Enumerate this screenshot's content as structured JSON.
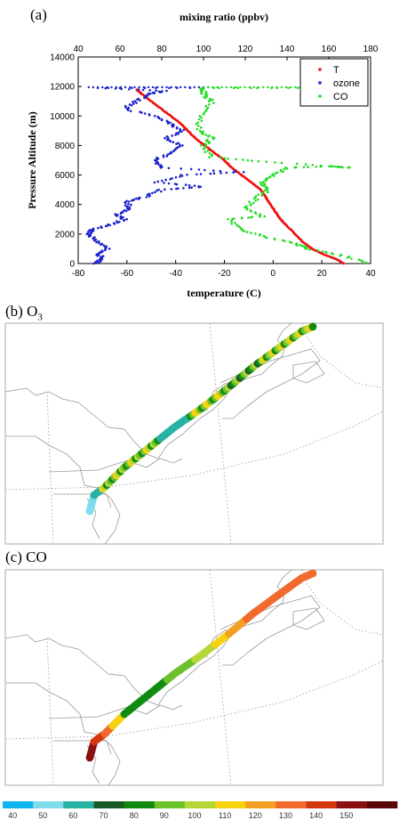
{
  "panels": {
    "a_label": "(a)",
    "b_label": "(b) O",
    "b_sub": "3",
    "c_label": "(c) CO"
  },
  "chart_data": [
    {
      "type": "scatter",
      "title": "",
      "xlabel_bottom": "temperature (C)",
      "xlabel_top": "mixing ratio (ppbv)",
      "ylabel": "Pressure Altitude (m)",
      "xlim_bottom": [
        -80,
        40
      ],
      "xlim_top": [
        40,
        180
      ],
      "ylim": [
        0,
        14000
      ],
      "xticks_bottom": [
        "-80",
        "-60",
        "-40",
        "-20",
        "0",
        "20",
        "40"
      ],
      "xticks_top": [
        "40",
        "60",
        "80",
        "100",
        "120",
        "140",
        "160",
        "180"
      ],
      "yticks": [
        "0",
        "2000",
        "4000",
        "6000",
        "8000",
        "10000",
        "12000",
        "14000"
      ],
      "legend_position": "top-right",
      "series": [
        {
          "name": "T",
          "axis": "bottom",
          "color": "#ee1111",
          "points": [
            [
              29,
              0
            ],
            [
              26,
              300
            ],
            [
              21,
              600
            ],
            [
              16,
              1000
            ],
            [
              12,
              1500
            ],
            [
              9,
              2000
            ],
            [
              6,
              2500
            ],
            [
              3,
              3000
            ],
            [
              1,
              3500
            ],
            [
              -1,
              4000
            ],
            [
              -3,
              4500
            ],
            [
              -5,
              5000
            ],
            [
              -9,
              5500
            ],
            [
              -13,
              6000
            ],
            [
              -17,
              6500
            ],
            [
              -20,
              7000
            ],
            [
              -24,
              7500
            ],
            [
              -28,
              8000
            ],
            [
              -32,
              8500
            ],
            [
              -35,
              9000
            ],
            [
              -38,
              9500
            ],
            [
              -42,
              10000
            ],
            [
              -46,
              10500
            ],
            [
              -50,
              11000
            ],
            [
              -54,
              11500
            ],
            [
              -56,
              11800
            ]
          ]
        },
        {
          "name": "ozone",
          "axis": "top",
          "color": "#1a22cc",
          "points": [
            [
              48,
              0
            ],
            [
              52,
              300
            ],
            [
              50,
              600
            ],
            [
              54,
              1000
            ],
            [
              49,
              1500
            ],
            [
              45,
              2000
            ],
            [
              47,
              2300
            ],
            [
              55,
              2600
            ],
            [
              62,
              3000
            ],
            [
              58,
              3300
            ],
            [
              65,
              3700
            ],
            [
              63,
              4200
            ],
            [
              72,
              4500
            ],
            [
              80,
              5000
            ],
            [
              100,
              5200
            ],
            [
              78,
              5500
            ],
            [
              90,
              6000
            ],
            [
              118,
              6200
            ],
            [
              80,
              6500
            ],
            [
              76,
              7000
            ],
            [
              85,
              7500
            ],
            [
              90,
              8000
            ],
            [
              82,
              8500
            ],
            [
              90,
              9000
            ],
            [
              84,
              9500
            ],
            [
              76,
              10000
            ],
            [
              62,
              10500
            ],
            [
              68,
              11000
            ],
            [
              74,
              11500
            ],
            [
              82,
              11700
            ],
            [
              50,
              11900
            ],
            [
              100,
              11900
            ]
          ]
        },
        {
          "name": "CO",
          "axis": "top",
          "color": "#22dd22",
          "points": [
            [
              180,
              0
            ],
            [
              165,
              600
            ],
            [
              150,
              1000
            ],
            [
              145,
              1300
            ],
            [
              130,
              1800
            ],
            [
              118,
              2300
            ],
            [
              112,
              3000
            ],
            [
              128,
              3200
            ],
            [
              120,
              3800
            ],
            [
              126,
              4500
            ],
            [
              131,
              5000
            ],
            [
              128,
              5500
            ],
            [
              134,
              6000
            ],
            [
              140,
              6500
            ],
            [
              160,
              6600
            ],
            [
              170,
              6500
            ],
            [
              130,
              6900
            ],
            [
              104,
              7200
            ],
            [
              100,
              8000
            ],
            [
              104,
              8500
            ],
            [
              98,
              9000
            ],
            [
              98,
              10000
            ],
            [
              104,
              11000
            ],
            [
              100,
              11500
            ],
            [
              100,
              11900
            ],
            [
              140,
              11900
            ],
            [
              175,
              11900
            ]
          ]
        }
      ]
    },
    {
      "type": "scatter",
      "title": "(b) O3",
      "variable": "ozone (ppbv)",
      "map": "US Northeast coast flight track"
    },
    {
      "type": "scatter",
      "title": "(c) CO",
      "variable": "CO (ppbv)",
      "map": "US Northeast coast flight track"
    }
  ],
  "colorbar": {
    "ticks": [
      "40",
      "50",
      "60",
      "70",
      "80",
      "90",
      "100",
      "110",
      "120",
      "130",
      "140",
      "150"
    ],
    "colors": [
      "#0fb4f0",
      "#7fdcea",
      "#27b3a4",
      "#1a5c28",
      "#118a10",
      "#6bc22a",
      "#b5d637",
      "#f7d20e",
      "#f4a024",
      "#f26a2e",
      "#d3380f",
      "#8b1011",
      "#5a0607"
    ]
  }
}
